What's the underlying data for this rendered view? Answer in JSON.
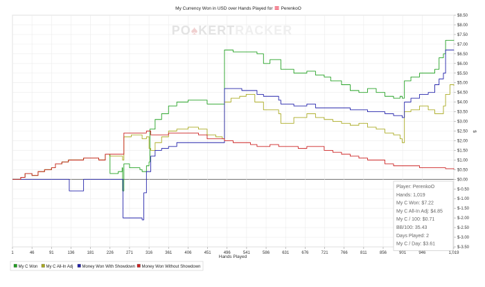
{
  "chart_data": {
    "type": "line",
    "title": "My Currency Won in USD over Hands Played for",
    "title_player": "PerenkoO",
    "flag_icon": "austria-flag-icon",
    "watermark": {
      "prefix": "PO",
      "spade": "♠",
      "suffix": "KERTRACKER"
    },
    "xlabel": "Hands Played",
    "ylabel": "$",
    "x_ticks": [
      "1",
      "46",
      "91",
      "136",
      "181",
      "226",
      "271",
      "316",
      "361",
      "406",
      "451",
      "496",
      "541",
      "586",
      "631",
      "676",
      "721",
      "766",
      "811",
      "856",
      "901",
      "946",
      "1,019"
    ],
    "xlim": [
      1,
      1019
    ],
    "y_ticks": [
      "$8.50",
      "$8.00",
      "$7.50",
      "$7.00",
      "$6.50",
      "$6.00",
      "$5.50",
      "$5.00",
      "$4.50",
      "$4.00",
      "$3.50",
      "$3.00",
      "$2.50",
      "$2.00",
      "$1.50",
      "$1.00",
      "$0.50",
      "$0.00",
      "$-0.50",
      "$-1.00",
      "$-1.50",
      "$-2.00",
      "$-2.50",
      "$-3.00",
      "$-3.50"
    ],
    "ylim": [
      -3.5,
      8.5
    ],
    "y_grid_step": 0.5,
    "grid": true,
    "legend_position": "bottom-left",
    "series": [
      {
        "name": "My C Won",
        "color": "#22a022",
        "points": [
          [
            1,
            0
          ],
          [
            20,
            0.1
          ],
          [
            30,
            0.3
          ],
          [
            46,
            0.2
          ],
          [
            60,
            0.4
          ],
          [
            75,
            0.5
          ],
          [
            91,
            0.6
          ],
          [
            100,
            0.8
          ],
          [
            115,
            0.9
          ],
          [
            130,
            1.0
          ],
          [
            150,
            1.0
          ],
          [
            165,
            1.1
          ],
          [
            181,
            1.1
          ],
          [
            200,
            1.0
          ],
          [
            215,
            1.3
          ],
          [
            225,
            1.3
          ],
          [
            226,
            0.3
          ],
          [
            245,
            0.4
          ],
          [
            254,
            0.6
          ],
          [
            255,
            -0.6
          ],
          [
            258,
            0.8
          ],
          [
            271,
            0.6
          ],
          [
            295,
            0.5
          ],
          [
            300,
            0.4
          ],
          [
            310,
            0.7
          ],
          [
            316,
            0.9
          ],
          [
            318,
            2.6
          ],
          [
            330,
            3.1
          ],
          [
            345,
            3.4
          ],
          [
            361,
            3.8
          ],
          [
            380,
            4.0
          ],
          [
            406,
            4.1
          ],
          [
            430,
            4.1
          ],
          [
            450,
            3.9
          ],
          [
            470,
            3.9
          ],
          [
            485,
            3.9
          ],
          [
            490,
            6.7
          ],
          [
            510,
            6.6
          ],
          [
            530,
            6.6
          ],
          [
            550,
            6.6
          ],
          [
            565,
            6.5
          ],
          [
            580,
            6.0
          ],
          [
            595,
            6.2
          ],
          [
            615,
            6.2
          ],
          [
            620,
            5.7
          ],
          [
            650,
            5.5
          ],
          [
            665,
            5.5
          ],
          [
            680,
            5.6
          ],
          [
            700,
            5.4
          ],
          [
            720,
            5.3
          ],
          [
            735,
            5.1
          ],
          [
            760,
            4.9
          ],
          [
            780,
            4.6
          ],
          [
            800,
            4.5
          ],
          [
            820,
            4.7
          ],
          [
            840,
            4.5
          ],
          [
            860,
            4.3
          ],
          [
            880,
            4.2
          ],
          [
            895,
            4.3
          ],
          [
            900,
            4.2
          ],
          [
            905,
            5.1
          ],
          [
            920,
            5.3
          ],
          [
            940,
            5.5
          ],
          [
            960,
            5.5
          ],
          [
            975,
            5.7
          ],
          [
            985,
            6.3
          ],
          [
            995,
            6.5
          ],
          [
            1000,
            7.2
          ],
          [
            1010,
            7.2
          ],
          [
            1019,
            7.22
          ]
        ]
      },
      {
        "name": "My C All-In Adj",
        "color": "#aaaa22",
        "points": [
          [
            1,
            0
          ],
          [
            20,
            0.1
          ],
          [
            30,
            0.3
          ],
          [
            46,
            0.2
          ],
          [
            60,
            0.4
          ],
          [
            75,
            0.5
          ],
          [
            91,
            0.6
          ],
          [
            100,
            0.8
          ],
          [
            115,
            0.9
          ],
          [
            130,
            1.0
          ],
          [
            150,
            1.0
          ],
          [
            165,
            1.1
          ],
          [
            181,
            1.1
          ],
          [
            200,
            1.0
          ],
          [
            215,
            1.3
          ],
          [
            225,
            1.2
          ],
          [
            255,
            1.0
          ],
          [
            258,
            2.2
          ],
          [
            275,
            2.3
          ],
          [
            290,
            2.3
          ],
          [
            300,
            2.1
          ],
          [
            310,
            2.2
          ],
          [
            316,
            1.6
          ],
          [
            320,
            1.5
          ],
          [
            330,
            1.9
          ],
          [
            345,
            2.2
          ],
          [
            361,
            2.5
          ],
          [
            380,
            2.6
          ],
          [
            406,
            2.7
          ],
          [
            430,
            2.6
          ],
          [
            450,
            2.3
          ],
          [
            470,
            2.2
          ],
          [
            485,
            2.1
          ],
          [
            490,
            4.0
          ],
          [
            505,
            4.2
          ],
          [
            525,
            4.3
          ],
          [
            540,
            4.4
          ],
          [
            560,
            4.0
          ],
          [
            580,
            3.6
          ],
          [
            600,
            3.6
          ],
          [
            615,
            3.4
          ],
          [
            620,
            2.9
          ],
          [
            650,
            3.2
          ],
          [
            680,
            3.4
          ],
          [
            700,
            3.2
          ],
          [
            720,
            3.1
          ],
          [
            740,
            3.0
          ],
          [
            760,
            2.9
          ],
          [
            780,
            2.8
          ],
          [
            800,
            2.9
          ],
          [
            820,
            2.7
          ],
          [
            840,
            2.6
          ],
          [
            860,
            2.4
          ],
          [
            880,
            2.3
          ],
          [
            895,
            2.1
          ],
          [
            900,
            1.9
          ],
          [
            905,
            3.5
          ],
          [
            920,
            3.6
          ],
          [
            940,
            3.8
          ],
          [
            960,
            3.6
          ],
          [
            975,
            3.4
          ],
          [
            985,
            3.4
          ],
          [
            995,
            3.8
          ],
          [
            1000,
            4.4
          ],
          [
            1010,
            4.9
          ],
          [
            1019,
            4.85
          ]
        ]
      },
      {
        "name": "Money Won With Showdown",
        "color": "#2222aa",
        "points": [
          [
            1,
            0
          ],
          [
            46,
            0
          ],
          [
            91,
            0
          ],
          [
            130,
            0
          ],
          [
            132,
            -0.6
          ],
          [
            160,
            -0.6
          ],
          [
            165,
            0
          ],
          [
            225,
            0
          ],
          [
            255,
            0
          ],
          [
            256,
            -2.0
          ],
          [
            275,
            -2.0
          ],
          [
            295,
            -2.0
          ],
          [
            300,
            -2.1
          ],
          [
            302,
            -2.1
          ],
          [
            304,
            -0.7
          ],
          [
            310,
            0.4
          ],
          [
            320,
            1.2
          ],
          [
            330,
            1.5
          ],
          [
            345,
            1.6
          ],
          [
            361,
            1.7
          ],
          [
            380,
            1.9
          ],
          [
            406,
            1.9
          ],
          [
            430,
            1.9
          ],
          [
            450,
            1.9
          ],
          [
            470,
            1.9
          ],
          [
            485,
            1.9
          ],
          [
            490,
            4.7
          ],
          [
            510,
            4.7
          ],
          [
            530,
            4.6
          ],
          [
            550,
            4.6
          ],
          [
            565,
            4.4
          ],
          [
            580,
            4.3
          ],
          [
            595,
            4.3
          ],
          [
            615,
            4.1
          ],
          [
            620,
            3.9
          ],
          [
            650,
            3.8
          ],
          [
            680,
            3.9
          ],
          [
            700,
            3.7
          ],
          [
            720,
            3.7
          ],
          [
            740,
            3.7
          ],
          [
            760,
            3.7
          ],
          [
            780,
            3.6
          ],
          [
            800,
            3.6
          ],
          [
            820,
            3.5
          ],
          [
            840,
            3.5
          ],
          [
            860,
            3.4
          ],
          [
            880,
            3.3
          ],
          [
            895,
            3.3
          ],
          [
            900,
            3.2
          ],
          [
            905,
            4.0
          ],
          [
            920,
            4.2
          ],
          [
            940,
            4.4
          ],
          [
            960,
            4.5
          ],
          [
            975,
            4.9
          ],
          [
            985,
            5.2
          ],
          [
            995,
            5.5
          ],
          [
            1000,
            6.7
          ],
          [
            1010,
            6.7
          ],
          [
            1019,
            6.71
          ]
        ]
      },
      {
        "name": "Money Won Without Showdown",
        "color": "#cc2222",
        "points": [
          [
            1,
            0
          ],
          [
            20,
            0.1
          ],
          [
            30,
            0.3
          ],
          [
            46,
            0.2
          ],
          [
            60,
            0.4
          ],
          [
            75,
            0.5
          ],
          [
            91,
            0.6
          ],
          [
            100,
            0.8
          ],
          [
            115,
            0.9
          ],
          [
            130,
            1.0
          ],
          [
            150,
            1.0
          ],
          [
            165,
            1.1
          ],
          [
            181,
            1.1
          ],
          [
            200,
            1.0
          ],
          [
            215,
            1.3
          ],
          [
            225,
            1.3
          ],
          [
            255,
            1.3
          ],
          [
            258,
            2.4
          ],
          [
            275,
            2.4
          ],
          [
            295,
            2.4
          ],
          [
            310,
            2.5
          ],
          [
            320,
            2.3
          ],
          [
            340,
            2.3
          ],
          [
            361,
            2.4
          ],
          [
            380,
            2.4
          ],
          [
            406,
            2.4
          ],
          [
            430,
            2.3
          ],
          [
            450,
            2.1
          ],
          [
            470,
            2.1
          ],
          [
            485,
            2.1
          ],
          [
            490,
            2.0
          ],
          [
            510,
            1.9
          ],
          [
            530,
            1.9
          ],
          [
            550,
            1.8
          ],
          [
            565,
            1.7
          ],
          [
            580,
            1.7
          ],
          [
            595,
            1.8
          ],
          [
            615,
            1.7
          ],
          [
            640,
            1.7
          ],
          [
            660,
            1.6
          ],
          [
            680,
            1.7
          ],
          [
            700,
            1.7
          ],
          [
            720,
            1.5
          ],
          [
            740,
            1.4
          ],
          [
            760,
            1.3
          ],
          [
            780,
            1.2
          ],
          [
            800,
            1.1
          ],
          [
            820,
            1.0
          ],
          [
            840,
            1.0
          ],
          [
            860,
            0.8
          ],
          [
            880,
            0.7
          ],
          [
            900,
            0.7
          ],
          [
            920,
            0.7
          ],
          [
            940,
            0.6
          ],
          [
            960,
            0.6
          ],
          [
            980,
            0.6
          ],
          [
            1000,
            0.55
          ],
          [
            1019,
            0.51
          ]
        ]
      }
    ],
    "stats": [
      "Player: PerenkoO",
      "Hands: 1,019",
      "My C Won: $7.22",
      "My C All-In Adj: $4.85",
      "My C / 100: $0.71",
      "BB/100: 35.43",
      "Days Played: 2",
      "My C / Day: $3.61"
    ]
  }
}
